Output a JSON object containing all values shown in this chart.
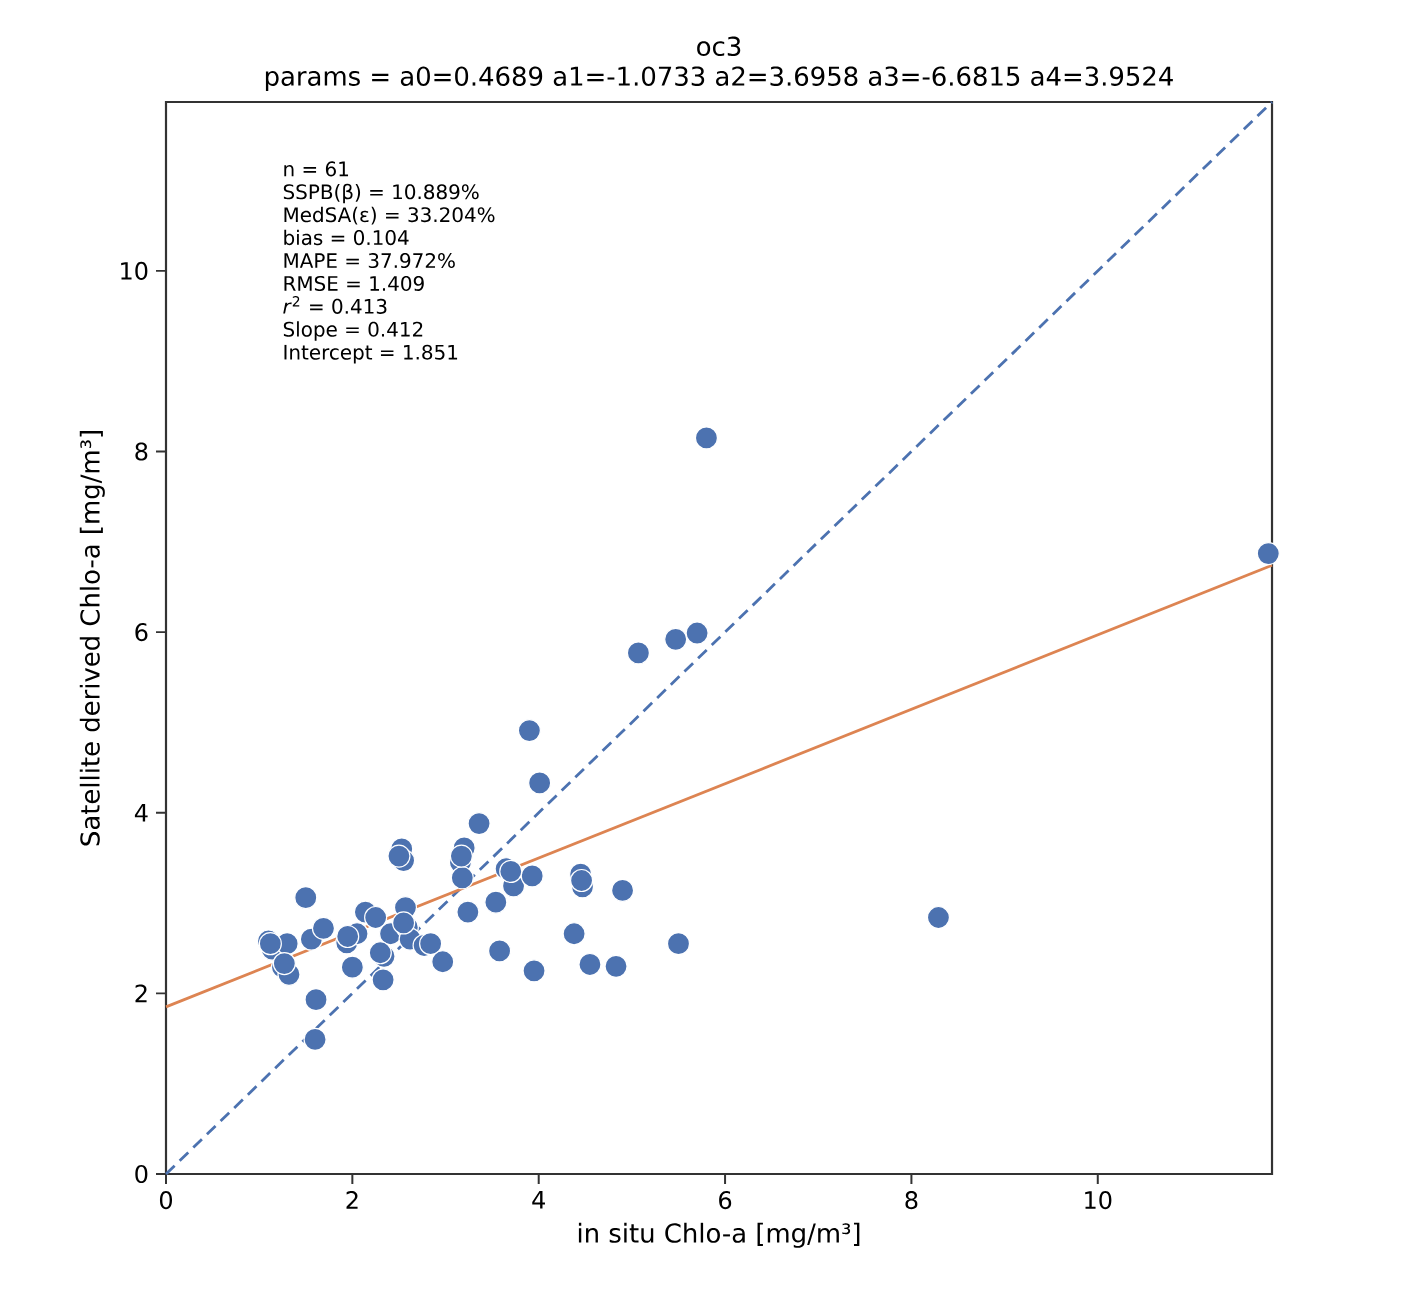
{
  "chart_data": {
    "type": "scatter",
    "title": "oc3",
    "subtitle": "params = a0=0.4689 a1=-1.0733 a2=3.6958 a3=-6.6815 a4=3.9524",
    "xlabel": "in situ Chlo-a [mg/m³]",
    "ylabel": "Satellite derived Chlo-a [mg/m³]",
    "xlim": [
      0,
      11.87
    ],
    "ylim": [
      0,
      11.87
    ],
    "xticks": [
      0,
      2,
      4,
      6,
      8,
      10
    ],
    "yticks": [
      0,
      2,
      4,
      6,
      8,
      10
    ],
    "grid": false,
    "annotations": [
      "n = 61",
      "SSPB(β) = 10.889%",
      "MedSA(ε) = 33.204%",
      "bias = 0.104",
      "MAPE = 37.972%",
      "RMSE = 1.409",
      "*r*$^{2}$ = 0.413",
      "Slope = 0.412",
      "Intercept = 1.851"
    ],
    "series": [
      {
        "color": "#4c72b0",
        "marker": "circle",
        "x": [
          3.9,
          4.01,
          3.36,
          2.53,
          2.55,
          3.2,
          3.16,
          3.18,
          3.65,
          3.73,
          3.93,
          4.45,
          4.47,
          4.9,
          4.38,
          4.55,
          4.83,
          5.5,
          3.95,
          3.58,
          3.54,
          3.24,
          1.5,
          1.61,
          1.6,
          1.1,
          1.14,
          1.3,
          1.25,
          1.32,
          1.56,
          1.69,
          2.0,
          1.94,
          2.05,
          2.14,
          2.25,
          2.41,
          2.34,
          2.33,
          2.57,
          2.59,
          2.62,
          2.77,
          2.84,
          2.97,
          5.07,
          5.47,
          5.7,
          5.8,
          8.29,
          11.83,
          1.27,
          1.95,
          2.5,
          3.17,
          3.7,
          4.46,
          2.55,
          2.3,
          1.12
        ],
        "values": [
          4.91,
          4.33,
          3.88,
          3.6,
          3.47,
          3.61,
          3.45,
          3.28,
          3.38,
          3.19,
          3.3,
          3.32,
          3.18,
          3.14,
          2.66,
          2.32,
          2.3,
          2.55,
          2.25,
          2.47,
          3.01,
          2.9,
          3.06,
          1.93,
          1.49,
          2.58,
          2.49,
          2.55,
          2.29,
          2.21,
          2.6,
          2.72,
          2.29,
          2.56,
          2.66,
          2.9,
          2.84,
          2.66,
          2.41,
          2.15,
          2.95,
          2.73,
          2.6,
          2.53,
          2.55,
          2.35,
          5.77,
          5.92,
          5.99,
          8.15,
          2.84,
          6.87,
          2.33,
          2.63,
          3.52,
          3.52,
          3.35,
          3.25,
          2.78,
          2.45,
          2.55
        ]
      },
      {
        "type": "line",
        "color": "#4c72b0",
        "marker": "none",
        "line_style": "dashed",
        "x": [
          0,
          11.87
        ],
        "values": [
          0,
          11.87
        ]
      },
      {
        "type": "line",
        "color": "#dd8452",
        "marker": "none",
        "line_style": "solid",
        "x": [
          0,
          11.87
        ],
        "values": [
          1.85,
          6.74
        ]
      }
    ]
  }
}
